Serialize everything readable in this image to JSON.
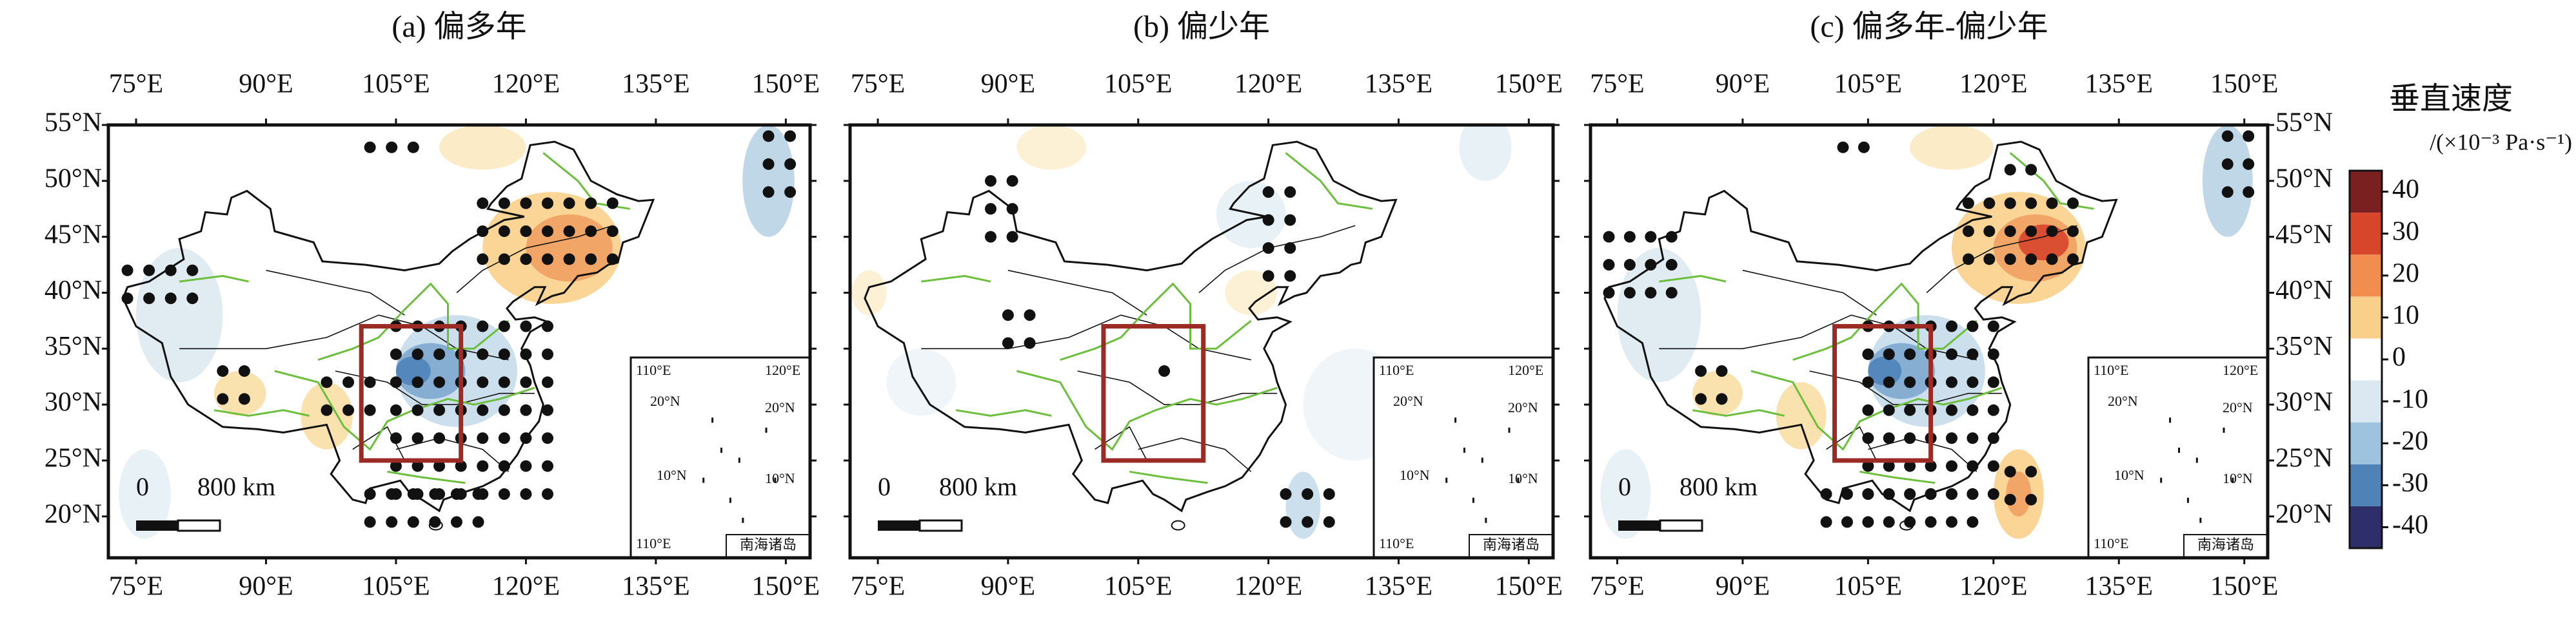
{
  "panels": [
    {
      "title": "(a) 偏多年"
    },
    {
      "title": "(b) 偏少年"
    },
    {
      "title": "(c) 偏多年-偏少年"
    }
  ],
  "lon_labels": [
    {
      "value": 75,
      "label": "75°E"
    },
    {
      "value": 90,
      "label": "90°E"
    },
    {
      "value": 105,
      "label": "105°E"
    },
    {
      "value": 120,
      "label": "120°E"
    },
    {
      "value": 135,
      "label": "135°E"
    },
    {
      "value": 150,
      "label": "150°E"
    }
  ],
  "lat_labels": [
    {
      "value": 55,
      "label": "55°N"
    },
    {
      "value": 50,
      "label": "50°N"
    },
    {
      "value": 45,
      "label": "45°N"
    },
    {
      "value": 40,
      "label": "40°N"
    },
    {
      "value": 35,
      "label": "35°N"
    },
    {
      "value": 30,
      "label": "30°N"
    },
    {
      "value": 25,
      "label": "25°N"
    },
    {
      "value": 20,
      "label": "20°N"
    }
  ],
  "scale_bar": {
    "start": "0",
    "end": "800 km"
  },
  "inset": {
    "lon_labels": [
      "110°E",
      "120°E"
    ],
    "lat_labels": [
      "20°N",
      "10°N"
    ],
    "bottom_label": "110°E",
    "name": "南海诸岛"
  },
  "colorbar": {
    "title": "垂直速度",
    "unit": "/(×10⁻³ Pa·s⁻¹)",
    "ticks": [
      40,
      30,
      20,
      10,
      0,
      -10,
      -20,
      -30,
      -40
    ],
    "lim": [
      -45,
      45
    ],
    "colors": [
      "#2e2f6a",
      "#4f83b8",
      "#9ec3de",
      "#dbe8f2",
      "#ffffff",
      "#f9d08a",
      "#f08d4f",
      "#d7452b",
      "#7b2020"
    ]
  }
}
